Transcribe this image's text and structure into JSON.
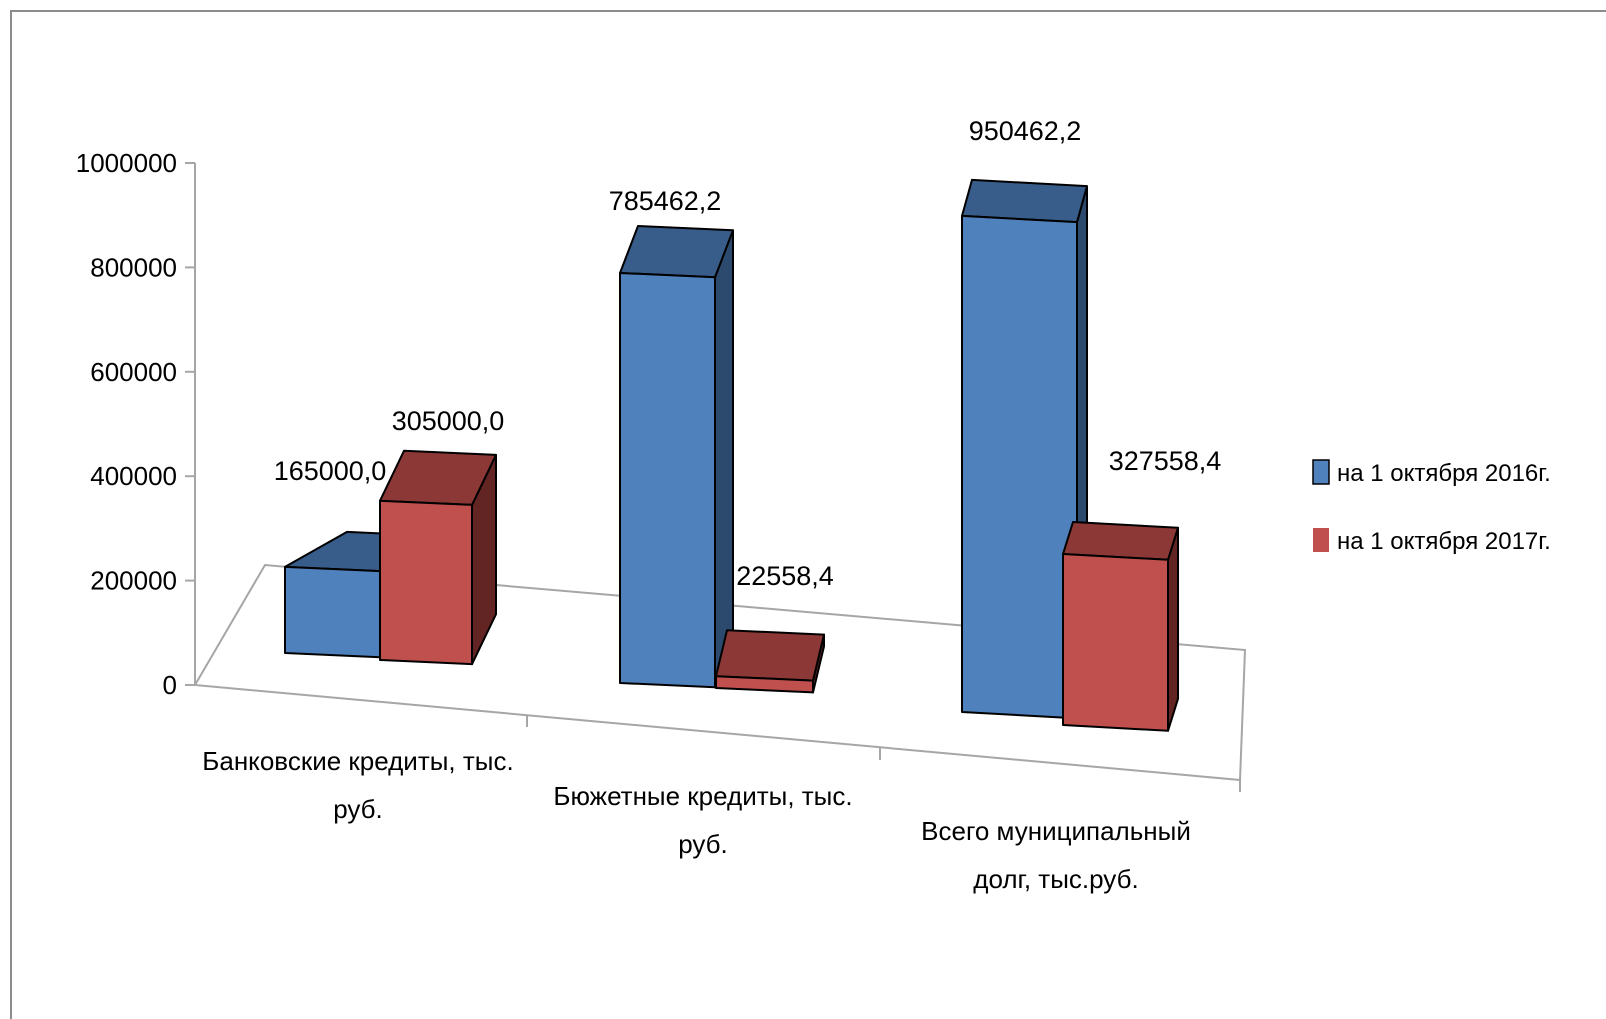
{
  "chart_data": {
    "type": "bar",
    "categories": [
      [
        "Банковские кредиты, тыс.",
        "руб."
      ],
      [
        "Бюжетные кредиты, тыс.",
        "руб."
      ],
      [
        "Всего муниципальный",
        "долг, тыс.руб."
      ]
    ],
    "series": [
      {
        "name": "на 1 октября 2016г.",
        "values": [
          165000.0,
          785462.2,
          950462.2
        ],
        "labels": [
          "165000,0",
          "785462,2",
          "950462,2"
        ],
        "color": "#4f81bd",
        "top_color": "#385d8a",
        "side_color": "#2c4a6e"
      },
      {
        "name": "на 1 октября 2017г.",
        "values": [
          305000.0,
          22558.4,
          327558.4
        ],
        "labels": [
          "305000,0",
          "22558,4",
          "327558,4"
        ],
        "color": "#c0504d",
        "top_color": "#8c3836",
        "side_color": "#632523"
      }
    ],
    "yticks": [
      "0",
      "200000",
      "400000",
      "600000",
      "800000",
      "1000000"
    ],
    "ylim": [
      0,
      1000000
    ],
    "legend_position": "right",
    "grid": false
  }
}
